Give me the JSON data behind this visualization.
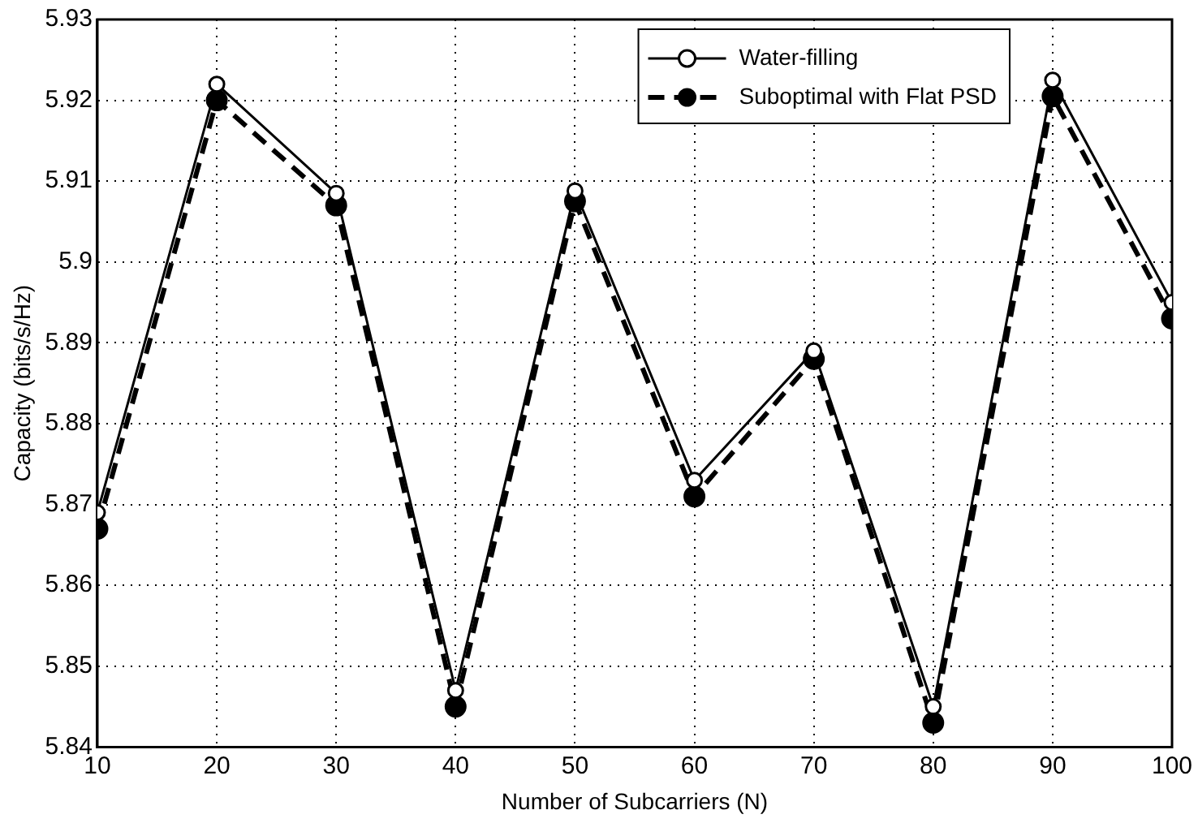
{
  "chart_data": {
    "type": "line",
    "xlabel": "Number of Subcarriers (N)",
    "ylabel": "Capacity (bits/s/Hz)",
    "x": [
      10,
      20,
      30,
      40,
      50,
      60,
      70,
      80,
      90,
      100
    ],
    "xlim": [
      10,
      100
    ],
    "xticks": [
      10,
      20,
      30,
      40,
      50,
      60,
      70,
      80,
      90,
      100
    ],
    "ylim": [
      5.84,
      5.93
    ],
    "yticks": [
      5.84,
      5.85,
      5.86,
      5.87,
      5.88,
      5.89,
      5.9,
      5.91,
      5.92,
      5.93
    ],
    "grid": true,
    "legend": "top right",
    "marker": "circle",
    "series": [
      {
        "name": "Water-filling",
        "color": "#000000",
        "line_style": "solid",
        "values": [
          5.869,
          5.922,
          5.9085,
          5.847,
          5.9088,
          5.873,
          5.889,
          5.845,
          5.9225,
          5.895
        ]
      },
      {
        "name": "Suboptimal with Flat PSD",
        "color": "#000000",
        "line_style": "dashed",
        "values": [
          5.867,
          5.92,
          5.907,
          5.845,
          5.9075,
          5.871,
          5.888,
          5.843,
          5.9205,
          5.893
        ]
      }
    ]
  }
}
